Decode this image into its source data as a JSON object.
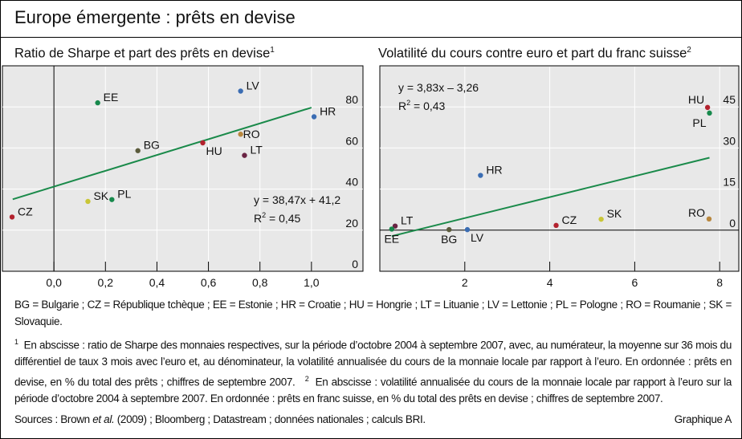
{
  "title": "Europe émergente : prêts en devise",
  "legend_text": "BG = Bulgarie ; CZ = République tchèque ; EE = Estonie ; HR = Croatie ; HU = Hongrie ; LT = Lituanie ; LV = Lettonie ; PL = Pologne ; RO = Roumanie ; SK = Slovaquie.",
  "note1_mark": "1",
  "note1": "En abscisse : ratio de Sharpe des monnaies respectives, sur la période d’octobre 2004 à septembre 2007, avec, au numérateur, la moyenne sur 36 mois du différentiel de taux 3 mois avec l’euro et, au dénominateur, la volatilité annualisée du cours de la monnaie locale par rapport à l’euro. En ordonnée : prêts en devise, en % du total des prêts ; chiffres de septembre 2007.",
  "note2_mark": "2",
  "note2": "En abscisse : volatilité annualisée du cours de la monnaie locale par rapport à l’euro sur la période d’octobre 2004 à septembre 2007. En ordonnée : prêts en franc suisse, en % du total des prêts en devise ; chiffres de septembre 2007.",
  "sources_prefix": "Sources : Brown ",
  "sources_italic": "et al.",
  "sources_suffix": " (2009) ; Bloomberg ; Datastream ; données nationales ; calculs BRI.",
  "graph_id": "Graphique A",
  "colors": {
    "background": "#e8e8e8",
    "grid": "#ffffff",
    "trend": "#1a8a4a",
    "BG": "#5b5b3c",
    "CZ": "#b3222e",
    "EE": "#17894c",
    "HR": "#3b6db3",
    "HU": "#b3222e",
    "LT": "#6a2444",
    "LV": "#3b6db3",
    "PL": "#17894c",
    "RO": "#b8873e",
    "SK": "#c9c637"
  },
  "chart_data": [
    {
      "type": "scatter",
      "title": "Ratio de Sharpe et part des prêts en devise",
      "title_note": "1",
      "xlim": [
        -0.2,
        1.2
      ],
      "ylim": [
        0,
        100
      ],
      "x_ticks": [
        0.0,
        0.2,
        0.4,
        0.6,
        0.8,
        1.0
      ],
      "x_tick_labels": [
        "0,0",
        "0,2",
        "0,4",
        "0,6",
        "0,8",
        "1,0"
      ],
      "y_ticks": [
        0,
        20,
        40,
        60,
        80
      ],
      "y_tick_labels": [
        "0",
        "20",
        "40",
        "60",
        "80"
      ],
      "y_axis_side": "right",
      "grid": true,
      "points": [
        {
          "label": "EE",
          "x": 0.17,
          "y": 82,
          "label_pos": "right"
        },
        {
          "label": "LV",
          "x": 0.725,
          "y": 87.7,
          "label_pos": "right"
        },
        {
          "label": "HR",
          "x": 1.01,
          "y": 75.2,
          "label_pos": "right"
        },
        {
          "label": "RO",
          "x": 0.725,
          "y": 66.7,
          "label_pos": "right-low"
        },
        {
          "label": "HU",
          "x": 0.578,
          "y": 62.5,
          "label_pos": "below-right"
        },
        {
          "label": "LT",
          "x": 0.74,
          "y": 56.4,
          "label_pos": "right"
        },
        {
          "label": "BG",
          "x": 0.326,
          "y": 58.7,
          "label_pos": "right"
        },
        {
          "label": "SK",
          "x": 0.132,
          "y": 34,
          "label_pos": "right"
        },
        {
          "label": "PL",
          "x": 0.225,
          "y": 34.9,
          "label_pos": "right"
        },
        {
          "label": "CZ",
          "x": -0.1625,
          "y": 26.4,
          "label_pos": "right"
        }
      ],
      "trend": {
        "slope": 38.47,
        "intercept": 41.2,
        "x_range": [
          -0.16,
          1.0
        ]
      },
      "equation": "y = 38,47x + 41,2",
      "r2_label": "R",
      "r2_value": " = 0,45"
    },
    {
      "type": "scatter",
      "title": "Volatilité du cours contre euro et part du franc suisse",
      "title_note": "2",
      "xlim": [
        0,
        8.45
      ],
      "ylim": [
        -15,
        60
      ],
      "x_ticks": [
        2,
        4,
        6,
        8
      ],
      "x_tick_labels": [
        "2",
        "4",
        "6",
        "8"
      ],
      "y_ticks": [
        0,
        15,
        30,
        45
      ],
      "y_tick_labels": [
        "0",
        "15",
        "30",
        "45"
      ],
      "y_axis_side": "right",
      "grid": true,
      "points": [
        {
          "label": "HU",
          "x": 7.715,
          "y": 44.8,
          "label_pos": "above-left"
        },
        {
          "label": "PL",
          "x": 7.76,
          "y": 42.75,
          "label_pos": "below-left"
        },
        {
          "label": "HR",
          "x": 2.37,
          "y": 20,
          "label_pos": "right"
        },
        {
          "label": "LT",
          "x": 0.36,
          "y": 1.5,
          "label_pos": "right"
        },
        {
          "label": "EE",
          "x": 0.28,
          "y": 0.4,
          "label_pos": "below"
        },
        {
          "label": "BG",
          "x": 1.63,
          "y": 0.2,
          "label_pos": "below"
        },
        {
          "label": "LV",
          "x": 2.06,
          "y": 0.2,
          "label_pos": "below-right"
        },
        {
          "label": "CZ",
          "x": 4.15,
          "y": 1.75,
          "label_pos": "right"
        },
        {
          "label": "SK",
          "x": 5.21,
          "y": 4,
          "label_pos": "right"
        },
        {
          "label": "RO",
          "x": 7.75,
          "y": 4.1,
          "label_pos": "left"
        }
      ],
      "trend": {
        "slope": 3.83,
        "intercept": -3.26,
        "x_range": [
          0.28,
          7.76
        ]
      },
      "equation": "y = 3,83x – 3,26",
      "r2_label": "R",
      "r2_value": " = 0,43"
    }
  ]
}
